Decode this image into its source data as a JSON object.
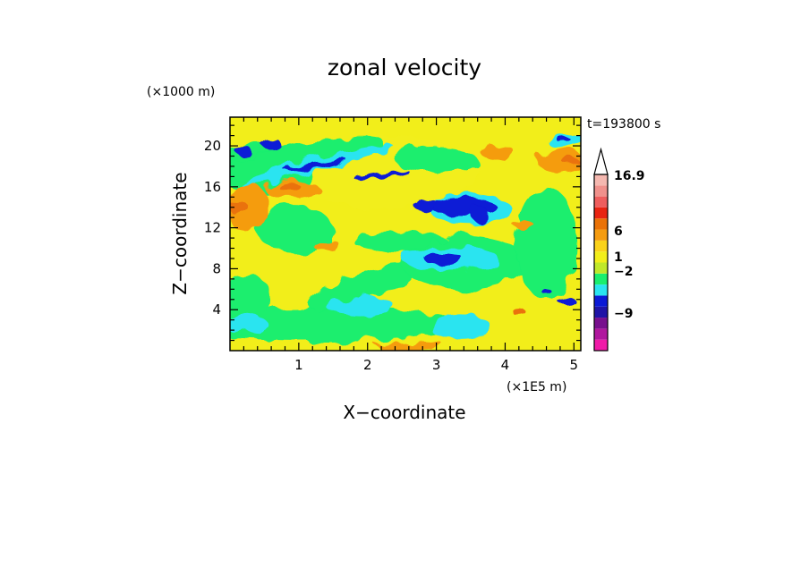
{
  "chart_data": {
    "type": "heatmap",
    "title": "zonal velocity",
    "xlabel": "X−coordinate",
    "ylabel": "Z−coordinate",
    "x_unit": "(×1E5 m)",
    "y_unit": "(×1000 m)",
    "time_label": "t=193800 s",
    "xlim": [
      0,
      5.1
    ],
    "ylim": [
      0,
      22.8
    ],
    "x_ticks": [
      1,
      2,
      3,
      4,
      5
    ],
    "x_minor_step": 0.2,
    "y_ticks": [
      4,
      8,
      12,
      16,
      20
    ],
    "y_minor_step": 1,
    "colorbar": {
      "levels": [
        {
          "color": "#f01aa8"
        },
        {
          "color": "#b0179e"
        },
        {
          "color": "#78108e"
        },
        {
          "color": "#1f14a6"
        },
        {
          "color": "#0b1ad6"
        },
        {
          "color": "#29e4f0"
        },
        {
          "color": "#1aee6e"
        },
        {
          "color": "#c0e82a"
        },
        {
          "color": "#f2ee1a"
        },
        {
          "color": "#fad21a"
        },
        {
          "color": "#f59c10"
        },
        {
          "color": "#ea7208"
        },
        {
          "color": "#e82412"
        },
        {
          "color": "#ee5e5e"
        },
        {
          "color": "#f0918c"
        },
        {
          "color": "#f5b8b0"
        }
      ],
      "labels": [
        {
          "text": "16.9",
          "value": 16.9
        },
        {
          "text": "6",
          "value": 6
        },
        {
          "text": "1",
          "value": 1
        },
        {
          "text": "−2",
          "value": -2
        },
        {
          "text": "−9",
          "value": -9
        }
      ]
    },
    "field": {
      "background": "#f2ee1a",
      "regions": [
        {
          "color": "#f2ee1a",
          "x": 2.2,
          "z": 17.5,
          "rx": 1.4,
          "rz": 3.5,
          "rot": 0
        },
        {
          "color": "#1aee6e",
          "x": 1.2,
          "z": 2.6,
          "rx": 2.2,
          "rz": 1.6,
          "rot": 0
        },
        {
          "color": "#1aee6e",
          "x": 0.95,
          "z": 11.8,
          "rx": 0.55,
          "rz": 2.3,
          "rot": 0
        },
        {
          "color": "#1aee6e",
          "x": 2.5,
          "z": 10.6,
          "rx": 0.7,
          "rz": 1.0,
          "rot": 0
        },
        {
          "color": "#1aee6e",
          "x": 1.9,
          "z": 6.2,
          "rx": 0.8,
          "rz": 1.4,
          "rot": -20
        },
        {
          "color": "#1aee6e",
          "x": 3.4,
          "z": 8.6,
          "rx": 0.9,
          "rz": 2.6,
          "rot": 0
        },
        {
          "color": "#1aee6e",
          "x": 0.5,
          "z": 17.8,
          "rx": 0.7,
          "rz": 2.4,
          "rot": 0
        },
        {
          "color": "#1aee6e",
          "x": 1.05,
          "z": 18.8,
          "rx": 1.2,
          "rz": 1.3,
          "rot": -12
        },
        {
          "color": "#1aee6e",
          "x": 4.6,
          "z": 10.5,
          "rx": 0.45,
          "rz": 5.5,
          "rot": 0
        },
        {
          "color": "#1aee6e",
          "x": 0.25,
          "z": 5.0,
          "rx": 0.35,
          "rz": 2.5,
          "rot": 0
        },
        {
          "color": "#1aee6e",
          "x": 3.0,
          "z": 18.6,
          "rx": 0.6,
          "rz": 1.2,
          "rot": 0
        },
        {
          "color": "#29e4f0",
          "x": 1.25,
          "z": 18.2,
          "rx": 1.15,
          "rz": 0.7,
          "rot": -14
        },
        {
          "color": "#29e4f0",
          "x": 3.2,
          "z": 9.0,
          "rx": 0.7,
          "rz": 1.3,
          "rot": 0
        },
        {
          "color": "#29e4f0",
          "x": 3.5,
          "z": 13.8,
          "rx": 0.6,
          "rz": 1.5,
          "rot": 0
        },
        {
          "color": "#29e4f0",
          "x": 1.9,
          "z": 4.3,
          "rx": 0.5,
          "rz": 0.9,
          "rot": 0
        },
        {
          "color": "#29e4f0",
          "x": 0.2,
          "z": 2.6,
          "rx": 0.35,
          "rz": 0.9,
          "rot": 0
        },
        {
          "color": "#29e4f0",
          "x": 4.9,
          "z": 20.5,
          "rx": 0.3,
          "rz": 0.7,
          "rot": 0
        },
        {
          "color": "#29e4f0",
          "x": 3.35,
          "z": 2.3,
          "rx": 0.45,
          "rz": 1.2,
          "rot": 0
        },
        {
          "color": "#0b1ad6",
          "x": 0.6,
          "z": 20.2,
          "rx": 0.14,
          "rz": 0.55,
          "rot": 0
        },
        {
          "color": "#0b1ad6",
          "x": 0.2,
          "z": 19.5,
          "rx": 0.12,
          "rz": 0.45,
          "rot": 0
        },
        {
          "color": "#0b1ad6",
          "x": 1.25,
          "z": 18.1,
          "rx": 0.45,
          "rz": 0.32,
          "rot": -12
        },
        {
          "color": "#0b1ad6",
          "x": 2.2,
          "z": 17.2,
          "rx": 0.4,
          "rz": 0.3,
          "rot": -8
        },
        {
          "color": "#0b1ad6",
          "x": 3.4,
          "z": 14.0,
          "rx": 0.48,
          "rz": 0.9,
          "rot": 0
        },
        {
          "color": "#0b1ad6",
          "x": 2.85,
          "z": 14.2,
          "rx": 0.18,
          "rz": 0.6,
          "rot": 0
        },
        {
          "color": "#0b1ad6",
          "x": 3.65,
          "z": 13.2,
          "rx": 0.12,
          "rz": 0.8,
          "rot": 0
        },
        {
          "color": "#0b1ad6",
          "x": 3.1,
          "z": 9.0,
          "rx": 0.28,
          "rz": 0.65,
          "rot": 0
        },
        {
          "color": "#0b1ad6",
          "x": 4.85,
          "z": 20.6,
          "rx": 0.1,
          "rz": 0.3,
          "rot": 0
        },
        {
          "color": "#0b1ad6",
          "x": 4.9,
          "z": 4.8,
          "rx": 0.13,
          "rz": 0.4,
          "rot": 0
        },
        {
          "color": "#0b1ad6",
          "x": 4.6,
          "z": 5.8,
          "rx": 0.07,
          "rz": 0.3,
          "rot": 0
        },
        {
          "color": "#f59c10",
          "x": 0.25,
          "z": 14.0,
          "rx": 0.3,
          "rz": 2.5,
          "rot": 0
        },
        {
          "color": "#f59c10",
          "x": 0.9,
          "z": 15.8,
          "rx": 0.4,
          "rz": 0.9,
          "rot": 0
        },
        {
          "color": "#f59c10",
          "x": 4.8,
          "z": 18.6,
          "rx": 0.35,
          "rz": 1.1,
          "rot": 0
        },
        {
          "color": "#f59c10",
          "x": 3.9,
          "z": 19.3,
          "rx": 0.25,
          "rz": 0.7,
          "rot": 0
        },
        {
          "color": "#f59c10",
          "x": 2.6,
          "z": 0.6,
          "rx": 0.5,
          "rz": 0.4,
          "rot": 0
        },
        {
          "color": "#f59c10",
          "x": 1.4,
          "z": 10.3,
          "rx": 0.2,
          "rz": 0.5,
          "rot": 0
        },
        {
          "color": "#f59c10",
          "x": 4.25,
          "z": 12.4,
          "rx": 0.15,
          "rz": 0.4,
          "rot": 0
        },
        {
          "color": "#ea7208",
          "x": 0.15,
          "z": 13.8,
          "rx": 0.15,
          "rz": 0.6,
          "rot": 0
        },
        {
          "color": "#ea7208",
          "x": 0.85,
          "z": 16.1,
          "rx": 0.16,
          "rz": 0.4,
          "rot": 0
        },
        {
          "color": "#ea7208",
          "x": 4.95,
          "z": 18.5,
          "rx": 0.12,
          "rz": 0.35,
          "rot": 0
        },
        {
          "color": "#ea7208",
          "x": 4.2,
          "z": 3.8,
          "rx": 0.1,
          "rz": 0.3,
          "rot": 0
        }
      ]
    }
  }
}
